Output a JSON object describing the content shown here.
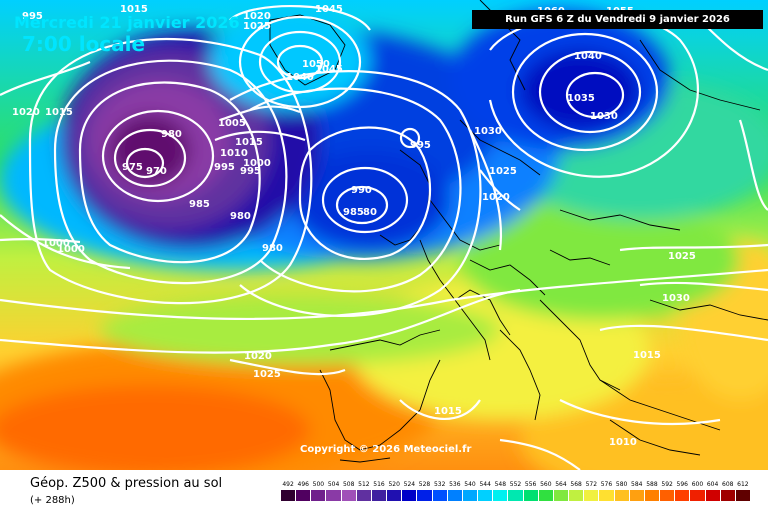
{
  "header": {
    "date": "Mercredi 21 janvier 2026",
    "time": "7:00 locale"
  },
  "run_info": "Run GFS 6 Z du Vendredi 9 janvier 2026",
  "copyright": "Copyright © 2026 Meteociel.fr",
  "legend": {
    "title": "Géop. Z500 & pression au sol",
    "subtitle": "(+ 288h)",
    "scale": [
      {
        "value": "492",
        "color": "#300030"
      },
      {
        "value": "496",
        "color": "#500060"
      },
      {
        "value": "500",
        "color": "#70208c"
      },
      {
        "value": "504",
        "color": "#8a3aa6"
      },
      {
        "value": "508",
        "color": "#a050b8"
      },
      {
        "value": "512",
        "color": "#6030a0"
      },
      {
        "value": "516",
        "color": "#4020a0"
      },
      {
        "value": "520",
        "color": "#2010b0"
      },
      {
        "value": "524",
        "color": "#0000c8"
      },
      {
        "value": "528",
        "color": "#0020e8"
      },
      {
        "value": "532",
        "color": "#0050ff"
      },
      {
        "value": "536",
        "color": "#0080ff"
      },
      {
        "value": "540",
        "color": "#00a8ff"
      },
      {
        "value": "544",
        "color": "#00d0ff"
      },
      {
        "value": "548",
        "color": "#00f0f0"
      },
      {
        "value": "552",
        "color": "#00e8b0"
      },
      {
        "value": "556",
        "color": "#00e070"
      },
      {
        "value": "560",
        "color": "#30e040"
      },
      {
        "value": "564",
        "color": "#80e840"
      },
      {
        "value": "568",
        "color": "#c0f040"
      },
      {
        "value": "572",
        "color": "#f0f040"
      },
      {
        "value": "576",
        "color": "#ffe030"
      },
      {
        "value": "580",
        "color": "#ffc020"
      },
      {
        "value": "584",
        "color": "#ffa010"
      },
      {
        "value": "588",
        "color": "#ff8000"
      },
      {
        "value": "592",
        "color": "#ff6000"
      },
      {
        "value": "596",
        "color": "#ff4000"
      },
      {
        "value": "600",
        "color": "#f02000"
      },
      {
        "value": "604",
        "color": "#d00000"
      },
      {
        "value": "608",
        "color": "#a00000"
      },
      {
        "value": "612",
        "color": "#600000"
      }
    ]
  },
  "pressure_labels": [
    {
      "text": "995"
    },
    {
      "text": "1020"
    },
    {
      "text": "1025"
    },
    {
      "text": "1045"
    },
    {
      "text": "1015"
    },
    {
      "text": "1050"
    },
    {
      "text": "1045"
    },
    {
      "text": "1040"
    },
    {
      "text": "1020"
    },
    {
      "text": "1015"
    },
    {
      "text": "980"
    },
    {
      "text": "1005"
    },
    {
      "text": "1015"
    },
    {
      "text": "1010"
    },
    {
      "text": "995"
    },
    {
      "text": "1000"
    },
    {
      "text": "995"
    },
    {
      "text": "975"
    },
    {
      "text": "970"
    },
    {
      "text": "985"
    },
    {
      "text": "980"
    },
    {
      "text": "980"
    },
    {
      "text": "1000"
    },
    {
      "text": "1000"
    },
    {
      "text": "990"
    },
    {
      "text": "985"
    },
    {
      "text": "80"
    },
    {
      "text": "995"
    },
    {
      "text": "1030"
    },
    {
      "text": "1025"
    },
    {
      "text": "1020"
    },
    {
      "text": "1060"
    },
    {
      "text": "1055"
    },
    {
      "text": "1040"
    },
    {
      "text": "1035"
    },
    {
      "text": "1030"
    },
    {
      "text": "1025"
    },
    {
      "text": "1030"
    },
    {
      "text": "1015"
    },
    {
      "text": "1020"
    },
    {
      "text": "1025"
    },
    {
      "text": "1015"
    },
    {
      "text": "1010"
    }
  ]
}
